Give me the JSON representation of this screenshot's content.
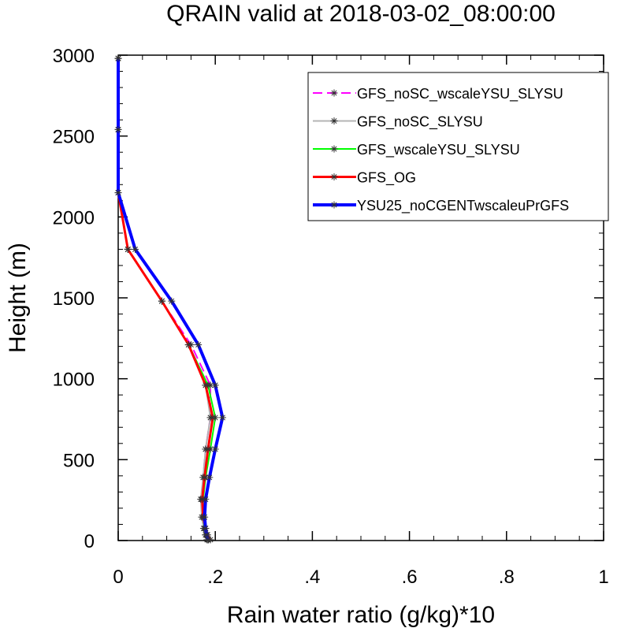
{
  "chart_data": {
    "type": "line",
    "title": "QRAIN valid at 2018-03-02_08:00:00",
    "xlabel": "Rain water ratio (g/kg)*10",
    "ylabel": "Height (m)",
    "xlim": [
      0,
      1
    ],
    "ylim": [
      0,
      3000
    ],
    "xticks": [
      {
        "value": 0,
        "label": "0"
      },
      {
        "value": 0.2,
        "label": ".2"
      },
      {
        "value": 0.4,
        "label": ".4"
      },
      {
        "value": 0.6,
        "label": ".6"
      },
      {
        "value": 0.8,
        "label": ".8"
      },
      {
        "value": 1,
        "label": "1"
      }
    ],
    "yticks": [
      {
        "value": 0,
        "label": "0"
      },
      {
        "value": 500,
        "label": "500"
      },
      {
        "value": 1000,
        "label": "1000"
      },
      {
        "value": 1500,
        "label": "1500"
      },
      {
        "value": 2000,
        "label": "2000"
      },
      {
        "value": 2500,
        "label": "2500"
      },
      {
        "value": 3000,
        "label": "3000"
      }
    ],
    "grid": false,
    "legend_position": "top-right",
    "series": [
      {
        "name": "GFS_noSC_wscaleYSU_SLYSU",
        "color": "#ff00ff",
        "dash": "dashed",
        "width": 2,
        "marker": "asterisk",
        "points": [
          [
            0.0,
            2980
          ],
          [
            0.0,
            2540
          ],
          [
            0.0,
            2150
          ],
          [
            0.02,
            1800
          ],
          [
            0.09,
            1480
          ],
          [
            0.15,
            1210
          ],
          [
            0.19,
            960
          ],
          [
            0.19,
            760
          ],
          [
            0.18,
            565
          ],
          [
            0.175,
            390
          ],
          [
            0.172,
            255
          ],
          [
            0.175,
            145
          ],
          [
            0.178,
            75
          ],
          [
            0.18,
            35
          ],
          [
            0.185,
            5
          ]
        ]
      },
      {
        "name": "GFS_noSC_SLYSU",
        "color": "#b4b4b4",
        "dash": "solid",
        "width": 2,
        "marker": "asterisk",
        "points": [
          [
            0.0,
            2980
          ],
          [
            0.0,
            2540
          ],
          [
            0.0,
            2150
          ],
          [
            0.02,
            1800
          ],
          [
            0.09,
            1480
          ],
          [
            0.145,
            1210
          ],
          [
            0.18,
            960
          ],
          [
            0.19,
            760
          ],
          [
            0.18,
            565
          ],
          [
            0.175,
            390
          ],
          [
            0.17,
            255
          ],
          [
            0.172,
            145
          ],
          [
            0.176,
            75
          ],
          [
            0.18,
            35
          ],
          [
            0.183,
            5
          ]
        ]
      },
      {
        "name": "GFS_wscaleYSU_SLYSU",
        "color": "#00ff00",
        "dash": "solid",
        "width": 2,
        "marker": "asterisk",
        "points": [
          [
            0.0,
            2980
          ],
          [
            0.0,
            2540
          ],
          [
            0.0,
            2150
          ],
          [
            0.02,
            1800
          ],
          [
            0.09,
            1480
          ],
          [
            0.145,
            1210
          ],
          [
            0.185,
            960
          ],
          [
            0.2,
            760
          ],
          [
            0.19,
            565
          ],
          [
            0.18,
            390
          ],
          [
            0.175,
            255
          ],
          [
            0.175,
            145
          ],
          [
            0.178,
            75
          ],
          [
            0.182,
            35
          ],
          [
            0.186,
            5
          ]
        ]
      },
      {
        "name": "GFS_OG",
        "color": "#ff0000",
        "dash": "solid",
        "width": 3,
        "marker": "asterisk",
        "points": [
          [
            0.0,
            2980
          ],
          [
            0.0,
            2540
          ],
          [
            0.0,
            2150
          ],
          [
            0.02,
            1800
          ],
          [
            0.09,
            1480
          ],
          [
            0.145,
            1210
          ],
          [
            0.18,
            960
          ],
          [
            0.195,
            760
          ],
          [
            0.185,
            565
          ],
          [
            0.178,
            390
          ],
          [
            0.173,
            255
          ],
          [
            0.175,
            145
          ],
          [
            0.18,
            75
          ],
          [
            0.184,
            35
          ],
          [
            0.19,
            5
          ]
        ]
      },
      {
        "name": "YSU25_noCGENTwscaleuPrGFS",
        "color": "#0000ff",
        "dash": "solid",
        "width": 4,
        "marker": "asterisk",
        "points": [
          [
            0.0,
            2980
          ],
          [
            0.0,
            2540
          ],
          [
            0.0,
            2150
          ],
          [
            0.035,
            1800
          ],
          [
            0.11,
            1480
          ],
          [
            0.165,
            1210
          ],
          [
            0.2,
            960
          ],
          [
            0.215,
            760
          ],
          [
            0.2,
            565
          ],
          [
            0.188,
            390
          ],
          [
            0.18,
            255
          ],
          [
            0.178,
            145
          ],
          [
            0.18,
            75
          ],
          [
            0.182,
            35
          ],
          [
            0.185,
            5
          ]
        ]
      }
    ]
  }
}
